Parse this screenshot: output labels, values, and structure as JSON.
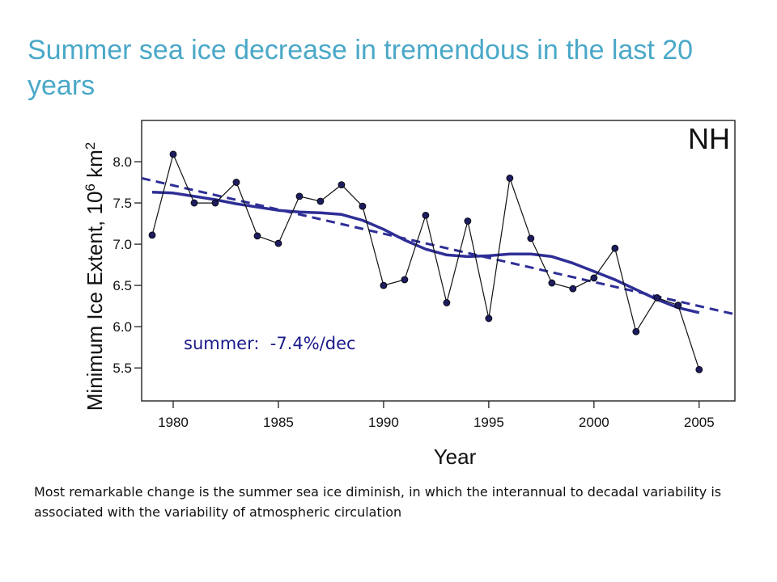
{
  "slide": {
    "title": "Summer sea ice decrease in tremendous in the last 20 years",
    "caption": "Most remarkable change is the summer sea ice diminish, in which the interannual to decadal variability is associated with the variability of atmospheric circulation"
  },
  "chart_data": {
    "type": "line",
    "panel_label": "NH",
    "annotation": "summer:  -7.4%/dec",
    "xlabel": "Year",
    "ylabel": "Minimum Ice Extent, 10⁶ km²",
    "xlim": [
      1978.5,
      2006.7
    ],
    "ylim": [
      5.1,
      8.5
    ],
    "xticks": [
      1980,
      1985,
      1990,
      1995,
      2000,
      2005
    ],
    "yticks": [
      5.5,
      6.0,
      6.5,
      7.0,
      7.5,
      8.0
    ],
    "ytick_labels": [
      "5.5",
      "6.0",
      "6.5",
      "7.0",
      "7.5",
      "8.0"
    ],
    "grid": false,
    "colors": {
      "observed": "#111111",
      "marker": "#1c1c5e",
      "smooth": "#2e2e96",
      "trend": "#2e2e96"
    },
    "series": [
      {
        "style": "thin black line with dark navy markers",
        "x": [
          1979,
          1980,
          1981,
          1982,
          1983,
          1984,
          1985,
          1986,
          1987,
          1988,
          1989,
          1990,
          1991,
          1992,
          1993,
          1994,
          1995,
          1996,
          1997,
          1998,
          1999,
          2000,
          2001,
          2002,
          2003,
          2004,
          2005
        ],
        "values": [
          7.11,
          8.09,
          7.5,
          7.5,
          7.75,
          7.1,
          7.01,
          7.58,
          7.52,
          7.72,
          7.46,
          6.5,
          6.57,
          7.35,
          6.29,
          7.28,
          6.1,
          7.8,
          7.07,
          6.53,
          6.46,
          6.59,
          6.95,
          5.94,
          6.35,
          6.26,
          5.48
        ]
      },
      {
        "style": "thick smoothed line",
        "x": [
          1979,
          1980,
          1981,
          1982,
          1983,
          1984,
          1985,
          1986,
          1987,
          1988,
          1989,
          1990,
          1991,
          1992,
          1993,
          1994,
          1995,
          1996,
          1997,
          1998,
          1999,
          2000,
          2001,
          2002,
          2003,
          2004,
          2005
        ],
        "values": [
          7.63,
          7.62,
          7.58,
          7.54,
          7.49,
          7.45,
          7.41,
          7.39,
          7.38,
          7.36,
          7.29,
          7.18,
          7.05,
          6.94,
          6.87,
          6.85,
          6.86,
          6.88,
          6.88,
          6.85,
          6.77,
          6.67,
          6.57,
          6.45,
          6.33,
          6.23,
          6.17
        ]
      },
      {
        "style": "dashed linear trend",
        "x": [
          1978.5,
          2006.7
        ],
        "values": [
          7.8,
          6.15
        ]
      }
    ]
  }
}
